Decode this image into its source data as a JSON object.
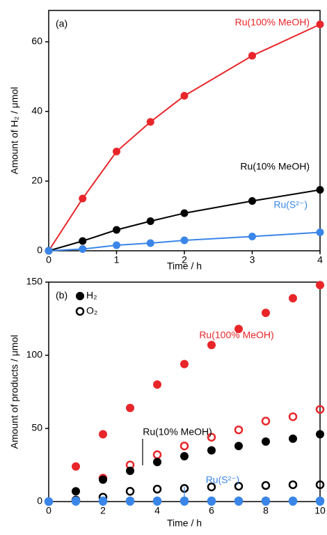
{
  "chart_data": [
    {
      "type": "line",
      "panel_label": "(a)",
      "x_label": "Time / h",
      "y_label": "Amount of H₂ / μmol",
      "x": [
        0,
        0.5,
        1,
        1.5,
        2,
        3,
        4
      ],
      "xlim": [
        0,
        4
      ],
      "xticks": [
        0,
        1,
        2,
        3,
        4
      ],
      "ylim": [
        0,
        69
      ],
      "yticks": [
        0,
        20,
        40,
        60
      ],
      "series": [
        {
          "name": "Ru(100% MeOH)",
          "color": "#e8262a",
          "values": [
            0,
            15,
            28.5,
            37,
            44.5,
            56,
            65
          ]
        },
        {
          "name": "Ru(10% MeOH)",
          "color": "#000000",
          "values": [
            0,
            2.8,
            6,
            8.5,
            10.8,
            14.3,
            17.5
          ]
        },
        {
          "name": "Ru(S²⁻)",
          "color": "#3a86e8",
          "values": [
            0,
            0.5,
            1.6,
            2.2,
            3,
            4.1,
            5.3
          ]
        }
      ]
    },
    {
      "type": "scatter",
      "panel_label": "(b)",
      "x_label": "Time / h",
      "y_label": "Amount of products / μmol",
      "legend": [
        "H₂",
        "O₂"
      ],
      "x": [
        0,
        1,
        2,
        3,
        4,
        5,
        6,
        7,
        8,
        9,
        10
      ],
      "xlim": [
        0,
        10
      ],
      "xticks": [
        0,
        2,
        4,
        6,
        8,
        10
      ],
      "ylim": [
        0,
        150
      ],
      "yticks": [
        0,
        50,
        100,
        150
      ],
      "series": [
        {
          "name": "Ru(100% MeOH)",
          "color": "#e8262a",
          "filled_values": [
            0,
            24,
            46,
            64,
            80,
            94,
            107,
            118,
            129,
            139,
            148
          ],
          "open_values": [
            null,
            null,
            16,
            25,
            32,
            38,
            44,
            49,
            55,
            58,
            63
          ]
        },
        {
          "name": "Ru(10% MeOH)",
          "color": "#000000",
          "filled_values": [
            0,
            7,
            15,
            21,
            27,
            31,
            35,
            38,
            41,
            43,
            46
          ],
          "open_values": [
            null,
            1,
            3,
            7,
            8.5,
            9,
            10,
            10.5,
            11,
            11.5,
            11.5
          ]
        },
        {
          "name": "Ru(S²⁻)",
          "color": "#3a86e8",
          "filled_values": [
            0,
            0,
            0,
            0,
            0,
            0,
            0,
            0,
            0,
            0,
            0
          ],
          "open_values": [
            0,
            0.5,
            0.5,
            0.5,
            0.5,
            0.5,
            0.5,
            0.5,
            0.5,
            0.5,
            0.5
          ]
        }
      ]
    }
  ]
}
